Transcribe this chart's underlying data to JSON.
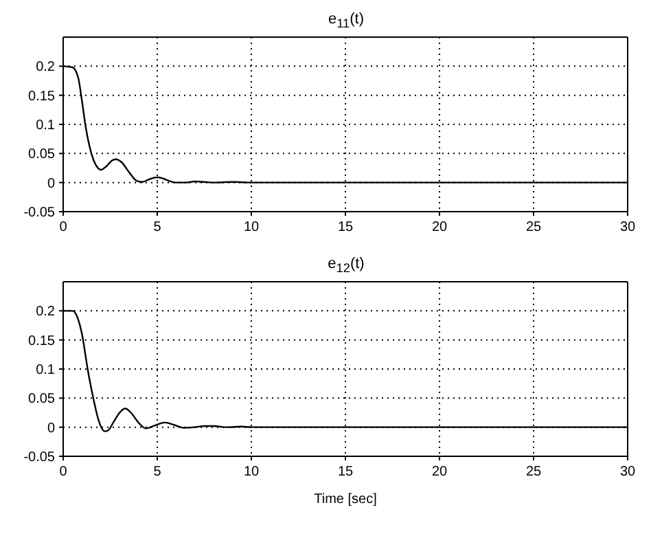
{
  "chart_data": [
    {
      "type": "line",
      "title": "e$_{11}$(t)",
      "xlim": [
        0,
        30
      ],
      "xticks": [
        0,
        5,
        10,
        15,
        20,
        25,
        30
      ],
      "ylim": [
        -0.05,
        0.25
      ],
      "yticks": [
        -0.05,
        0,
        0.05,
        0.1,
        0.15,
        0.2
      ],
      "grid": true,
      "color": "#000000",
      "x": [
        0,
        0.5,
        0.8,
        1.0,
        1.2,
        1.5,
        1.8,
        2.0,
        2.3,
        2.6,
        2.8,
        3.1,
        3.5,
        3.9,
        4.2,
        4.6,
        5.0,
        5.3,
        5.7,
        6.0,
        6.5,
        7.0,
        7.5,
        8.0,
        9.0,
        10,
        12,
        14,
        20,
        30
      ],
      "values": [
        0.2,
        0.198,
        0.18,
        0.14,
        0.095,
        0.05,
        0.027,
        0.022,
        0.028,
        0.038,
        0.04,
        0.035,
        0.018,
        0.003,
        0.001,
        0.006,
        0.009,
        0.007,
        0.002,
        0,
        0,
        0.002,
        0.001,
        0,
        0.001,
        0,
        0,
        0,
        0,
        0
      ]
    },
    {
      "type": "line",
      "title": "e$_{12}$(t)",
      "xlabel": "Time [sec]",
      "xlim": [
        0,
        30
      ],
      "xticks": [
        0,
        5,
        10,
        15,
        20,
        25,
        30
      ],
      "ylim": [
        -0.05,
        0.25
      ],
      "yticks": [
        -0.05,
        0,
        0.05,
        0.1,
        0.15,
        0.2
      ],
      "grid": true,
      "color": "#000000",
      "x": [
        0,
        0.5,
        0.8,
        1.0,
        1.3,
        1.6,
        1.9,
        2.2,
        2.4,
        2.7,
        3.0,
        3.3,
        3.6,
        4.0,
        4.4,
        4.8,
        5.4,
        5.9,
        6.4,
        7.0,
        7.5,
        8.0,
        8.7,
        9.5,
        10,
        15,
        30
      ],
      "values": [
        0.2,
        0.2,
        0.185,
        0.16,
        0.1,
        0.05,
        0.01,
        -0.007,
        -0.005,
        0.01,
        0.025,
        0.032,
        0.025,
        0.008,
        -0.002,
        0.002,
        0.008,
        0.004,
        -0.001,
        0,
        0.002,
        0.002,
        0,
        0.001,
        0,
        0,
        0
      ]
    }
  ]
}
